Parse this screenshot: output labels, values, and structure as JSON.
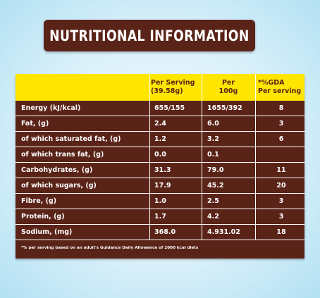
{
  "title": "NUTRITIONAL INFORMATION",
  "headers": {
    "per_serving_line1": "Per Serving",
    "per_serving_line2": "(39.58g)",
    "per_100g_line1": "Per",
    "per_100g_line2": "100g",
    "gda_line1": "*%GDA",
    "gda_line2": "Per serving"
  },
  "rows": [
    {
      "label": "Energy (kJ/kcal)",
      "per_serving": "655/155",
      "per_100g": "1655/392",
      "gda": "8"
    },
    {
      "label": "Fat, (g)",
      "per_serving": "2.4",
      "per_100g": "6.0",
      "gda": "3"
    },
    {
      "label": "of which saturated fat, (g)",
      "per_serving": "1.2",
      "per_100g": "3.2",
      "gda": "6"
    },
    {
      "label": "of which trans fat, (g)",
      "per_serving": "0.0",
      "per_100g": "0.1",
      "gda": ""
    },
    {
      "label": "Carbohydrates, (g)",
      "per_serving": "31.3",
      "per_100g": "79.0",
      "gda": "11"
    },
    {
      "label": "of which sugars, (g)",
      "per_serving": "17.9",
      "per_100g": "45.2",
      "gda": "20"
    },
    {
      "label": "Fibre, (g)",
      "per_serving": "1.0",
      "per_100g": "2.5",
      "gda": "3"
    },
    {
      "label": "Protein, (g)",
      "per_serving": "1.7",
      "per_100g": "4.2",
      "gda": "3"
    },
    {
      "label": "Sodium, (mg)",
      "per_serving": "368.0",
      "per_100g": "4.931.02",
      "gda": "18"
    }
  ],
  "footnote": "*% per serving based on an adult's Guidance Daily Allowance of 2000 kcal diets",
  "colors": {
    "brown": "#5a2317",
    "yellow": "#ffe600",
    "background": "#d9f0fa"
  }
}
